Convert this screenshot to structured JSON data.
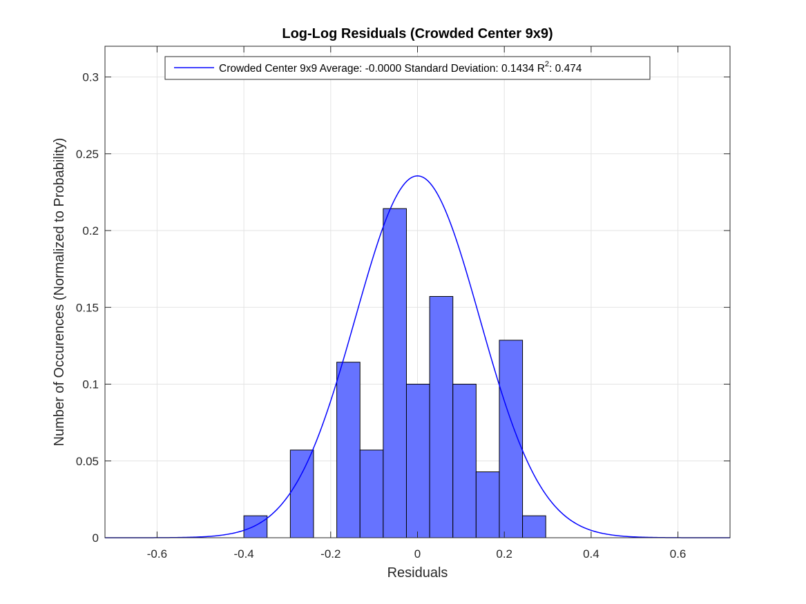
{
  "chart_data": {
    "type": "bar",
    "title": "Log-Log Residuals (Crowded Center 9x9)",
    "xlabel": "Residuals",
    "ylabel": "Number of Occurences (Normalized to Probability)",
    "xlim": [
      -0.72,
      0.72
    ],
    "ylim": [
      0,
      0.32
    ],
    "xticks": [
      -0.6,
      -0.4,
      -0.2,
      0,
      0.2,
      0.4,
      0.6
    ],
    "xtick_labels": [
      "-0.6",
      "-0.4",
      "-0.2",
      "0",
      "0.2",
      "0.4",
      "0.6"
    ],
    "yticks": [
      0,
      0.05,
      0.1,
      0.15,
      0.2,
      0.25,
      0.3
    ],
    "ytick_labels": [
      "0",
      "0.05",
      "0.1",
      "0.15",
      "0.2",
      "0.25",
      "0.3"
    ],
    "grid": true,
    "legend_location": "top",
    "histogram": {
      "bin_edges": [
        -0.4,
        -0.3465,
        -0.293,
        -0.2395,
        -0.186,
        -0.1325,
        -0.079,
        -0.0255,
        0.028,
        0.0815,
        0.135,
        0.1885,
        0.242,
        0.2955
      ],
      "values": [
        0.0143,
        0,
        0.0571,
        0,
        0.1143,
        0.0571,
        0.2143,
        0.1,
        0.1571,
        0.1,
        0.0429,
        0.1286,
        0.0143
      ],
      "face_color": "#6673FF",
      "edge_color": "#000000"
    },
    "series": [
      {
        "name": "Crowded Center 9x9 Average: -0.0000 Standard Deviation: 0.1434 R^2: 0.474",
        "type": "normal-fit-curve",
        "mean": 0,
        "std": 0.1434,
        "peak": 0.2356,
        "color": "#0000FF"
      }
    ],
    "legend": {
      "prefix": "Crowded Center 9x9 Average: -0.0000 Standard Deviation: 0.1434 R",
      "superscript": "2",
      "suffix": ": 0.474"
    }
  }
}
